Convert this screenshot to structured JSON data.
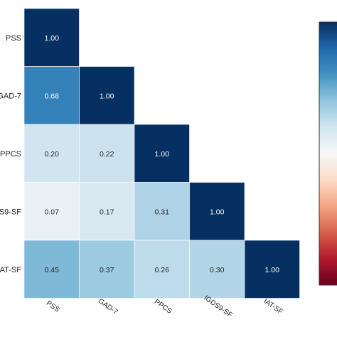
{
  "chart_data": {
    "type": "heatmap",
    "matrix_shape": "lower-triangular",
    "variables": [
      "PSS",
      "GAD-7",
      "PPCS",
      "IGDS9-SF",
      "IAT-SF"
    ],
    "y_tick_labels": [
      "PSS",
      "GAD-7",
      "PPCS",
      "S9-SF",
      "IAT-SF"
    ],
    "x_tick_labels": [
      "PSS",
      "GAD-7",
      "PPCS",
      "IGDS9-SF",
      "IAT-SF"
    ],
    "values": [
      [
        1.0,
        null,
        null,
        null,
        null
      ],
      [
        0.68,
        1.0,
        null,
        null,
        null
      ],
      [
        0.2,
        0.22,
        1.0,
        null,
        null
      ],
      [
        0.07,
        0.17,
        0.31,
        1.0,
        null
      ],
      [
        0.45,
        0.37,
        0.26,
        0.3,
        1.0
      ]
    ],
    "value_format": "0.00",
    "colorscale": "RdBu",
    "color_range": [
      -1,
      1
    ],
    "colorbar": {
      "position": "right",
      "tick_labels_visible": false
    },
    "grid": false
  }
}
